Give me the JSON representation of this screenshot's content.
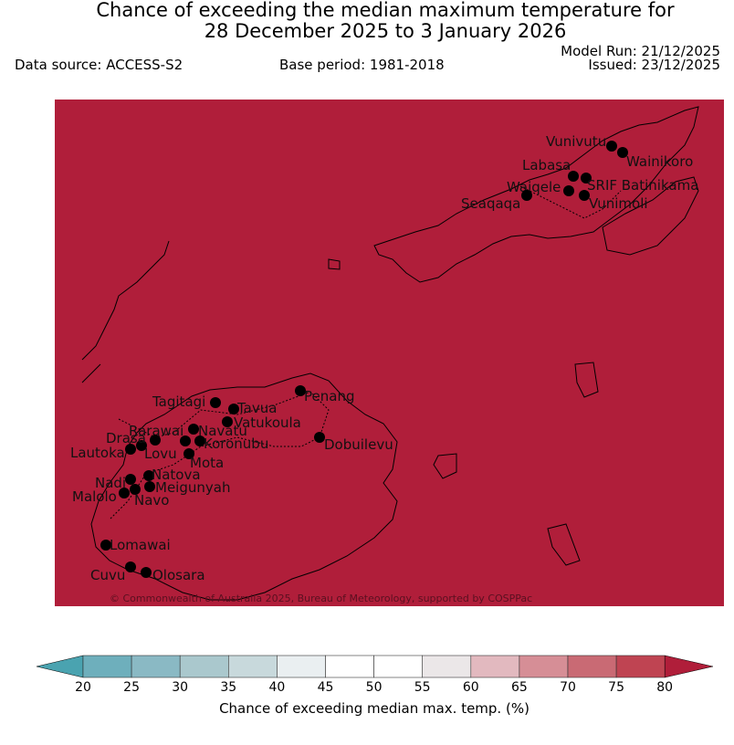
{
  "title_line1": "Chance of exceeding the median maximum temperature for",
  "title_line2": "28 December 2025 to 3 January 2026",
  "data_source": "Data source: ACCESS-S2",
  "base_period": "Base period: 1981-2018",
  "model_run": "Model Run: 21/12/2025",
  "issued": "Issued: 23/12/2025",
  "map": {
    "fill_color": "#b01e3a",
    "copyright": "© Commonwealth of Australia 2025, Bureau of Meteorology, supported by COSPPac",
    "stations": [
      "Vunivutu",
      "Wainikoro",
      "Labasa",
      "SRIF Batinikama",
      "Waiqele",
      "Vunimoli",
      "Seaqaqa",
      "Tagitagi",
      "Tavua",
      "Vatukoula",
      "Penang",
      "Dobuilevu",
      "Rarawai",
      "Navatu",
      "Koronubu",
      "Drasa",
      "Lautoka",
      "Lovu",
      "Mota",
      "Natova",
      "Nadi",
      "Meigunyah",
      "Navo",
      "Malolo",
      "Lomawai",
      "Cuvu",
      "Olosara"
    ]
  },
  "colorbar": {
    "label": "Chance of exceeding median max. temp. (%)",
    "ticks": [
      "20",
      "25",
      "30",
      "35",
      "40",
      "45",
      "50",
      "55",
      "60",
      "65",
      "70",
      "75",
      "80"
    ],
    "colors": [
      "#4aa3b0",
      "#6eafbc",
      "#8ab9c4",
      "#aac8cd",
      "#c8d9dc",
      "#eaeff1",
      "#ffffff",
      "#ffffff",
      "#ebe7e8",
      "#e2b9bf",
      "#d68e96",
      "#c96a74",
      "#bf4452",
      "#b01e3a"
    ]
  }
}
